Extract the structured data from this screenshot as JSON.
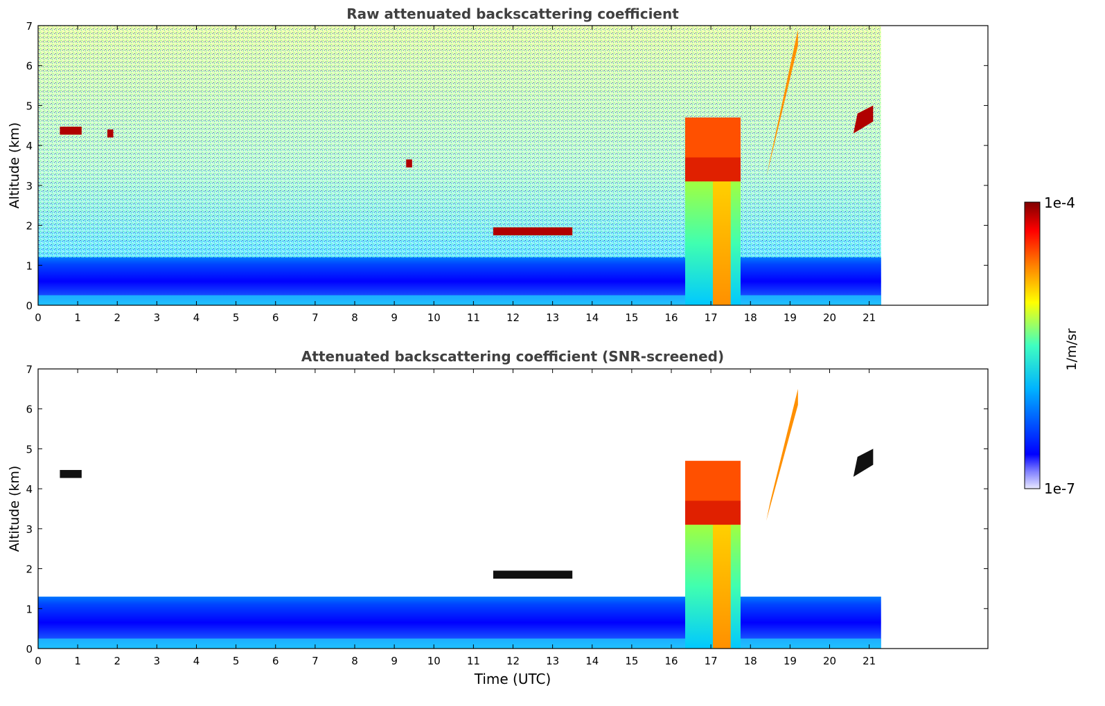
{
  "chart_data": [
    {
      "type": "heatmap",
      "title": "Raw attenuated backscattering coefficient",
      "xlabel": "",
      "ylabel": "Altitude (km)",
      "xlim": [
        0,
        24
      ],
      "ylim": [
        0,
        7
      ],
      "xticks": [
        "0",
        "1",
        "2",
        "3",
        "4",
        "5",
        "6",
        "7",
        "8",
        "9",
        "10",
        "11",
        "12",
        "13",
        "14",
        "15",
        "16",
        "17",
        "18",
        "19",
        "20",
        "21"
      ],
      "yticks": [
        "0",
        "1",
        "2",
        "3",
        "4",
        "5",
        "6",
        "7"
      ],
      "data_end_time": 21.3,
      "layers": [
        {
          "feature": "boundary layer aerosol",
          "t_start": 0,
          "t_end": 21.3,
          "alt_top": 1.2,
          "level": "low"
        },
        {
          "feature": "cloud",
          "t_start": 0.55,
          "t_end": 1.1,
          "alt": 4.37,
          "level": "very high"
        },
        {
          "feature": "cloud",
          "t_start": 1.75,
          "t_end": 1.9,
          "alt": 4.3,
          "level": "very high"
        },
        {
          "feature": "cloud",
          "t_start": 9.3,
          "t_end": 9.45,
          "alt": 3.55,
          "level": "very high"
        },
        {
          "feature": "cloud",
          "t_start": 11.5,
          "t_end": 13.5,
          "alt": 1.85,
          "level": "very high"
        },
        {
          "feature": "precipitating cloud",
          "t_start": 16.35,
          "t_end": 17.75,
          "alt_base": 3.1,
          "alt_top": 4.7,
          "level": "high"
        },
        {
          "feature": "cloud",
          "t_start": 18.4,
          "t_end": 19.2,
          "alt_base": 3.2,
          "alt_top": 6.9,
          "level": "high"
        },
        {
          "feature": "cloud",
          "t_start": 20.6,
          "t_end": 21.1,
          "alt_base": 4.3,
          "alt_top": 5.0,
          "level": "very high"
        }
      ]
    },
    {
      "type": "heatmap",
      "title": "Attenuated backscattering coefficient (SNR-screened)",
      "xlabel": "Time (UTC)",
      "ylabel": "Altitude (km)",
      "xlim": [
        0,
        24
      ],
      "ylim": [
        0,
        7
      ],
      "xticks": [
        "0",
        "1",
        "2",
        "3",
        "4",
        "5",
        "6",
        "7",
        "8",
        "9",
        "10",
        "11",
        "12",
        "13",
        "14",
        "15",
        "16",
        "17",
        "18",
        "19",
        "20",
        "21"
      ],
      "yticks": [
        "0",
        "1",
        "2",
        "3",
        "4",
        "5",
        "6",
        "7"
      ],
      "data_end_time": 21.3,
      "layers": [
        {
          "feature": "boundary layer aerosol",
          "t_start": 0,
          "t_end": 21.3,
          "alt_top": 1.3,
          "level": "low"
        },
        {
          "feature": "cloud",
          "t_start": 0.55,
          "t_end": 1.1,
          "alt": 4.37,
          "level": "black"
        },
        {
          "feature": "cloud",
          "t_start": 11.5,
          "t_end": 13.5,
          "alt": 1.85,
          "level": "black"
        },
        {
          "feature": "precipitating cloud",
          "t_start": 16.35,
          "t_end": 17.75,
          "alt_base": 3.1,
          "alt_top": 4.7,
          "level": "high"
        },
        {
          "feature": "cloud",
          "t_start": 18.4,
          "t_end": 19.2,
          "alt_base": 3.2,
          "alt_top": 6.5,
          "level": "high"
        },
        {
          "feature": "cloud",
          "t_start": 20.6,
          "t_end": 21.1,
          "alt_base": 4.3,
          "alt_top": 5.0,
          "level": "black"
        }
      ]
    }
  ],
  "colorbar": {
    "label": "1/m/sr",
    "max_label": "1e-4",
    "min_label": "1e-7",
    "scale": "log",
    "colors": [
      "#e8e8ff",
      "#0000ff",
      "#00b4ff",
      "#40ffc0",
      "#ffff00",
      "#ff8000",
      "#ff0000",
      "#800000"
    ]
  }
}
